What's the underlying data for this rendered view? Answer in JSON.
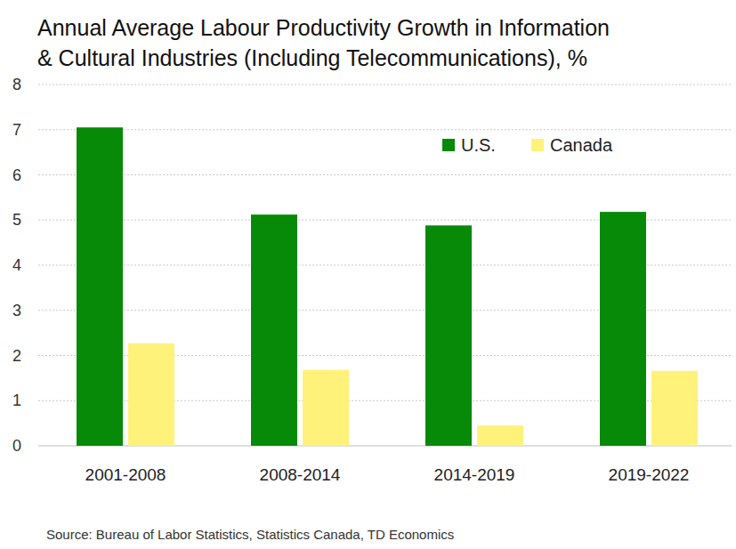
{
  "chart_data": {
    "type": "bar",
    "title": [
      "Annual Average Labour Productivity Growth in Information",
      "& Cultural Industries (Including Telecommunications), %"
    ],
    "categories": [
      "2001-2008",
      "2008-2014",
      "2014-2019",
      "2019-2022"
    ],
    "series": [
      {
        "name": "U.S.",
        "color": "#078a07",
        "values": [
          7.05,
          5.12,
          4.88,
          5.18
        ]
      },
      {
        "name": "Canada",
        "color": "#fff27a",
        "values": [
          2.27,
          1.68,
          0.45,
          1.66
        ]
      }
    ],
    "ylim": [
      0,
      8
    ],
    "yticks": [
      0,
      1,
      2,
      3,
      4,
      5,
      6,
      7,
      8
    ],
    "grid": true,
    "legend": "upper right",
    "source": "Source: Bureau of Labor Statistics, Statistics Canada, TD Economics"
  }
}
